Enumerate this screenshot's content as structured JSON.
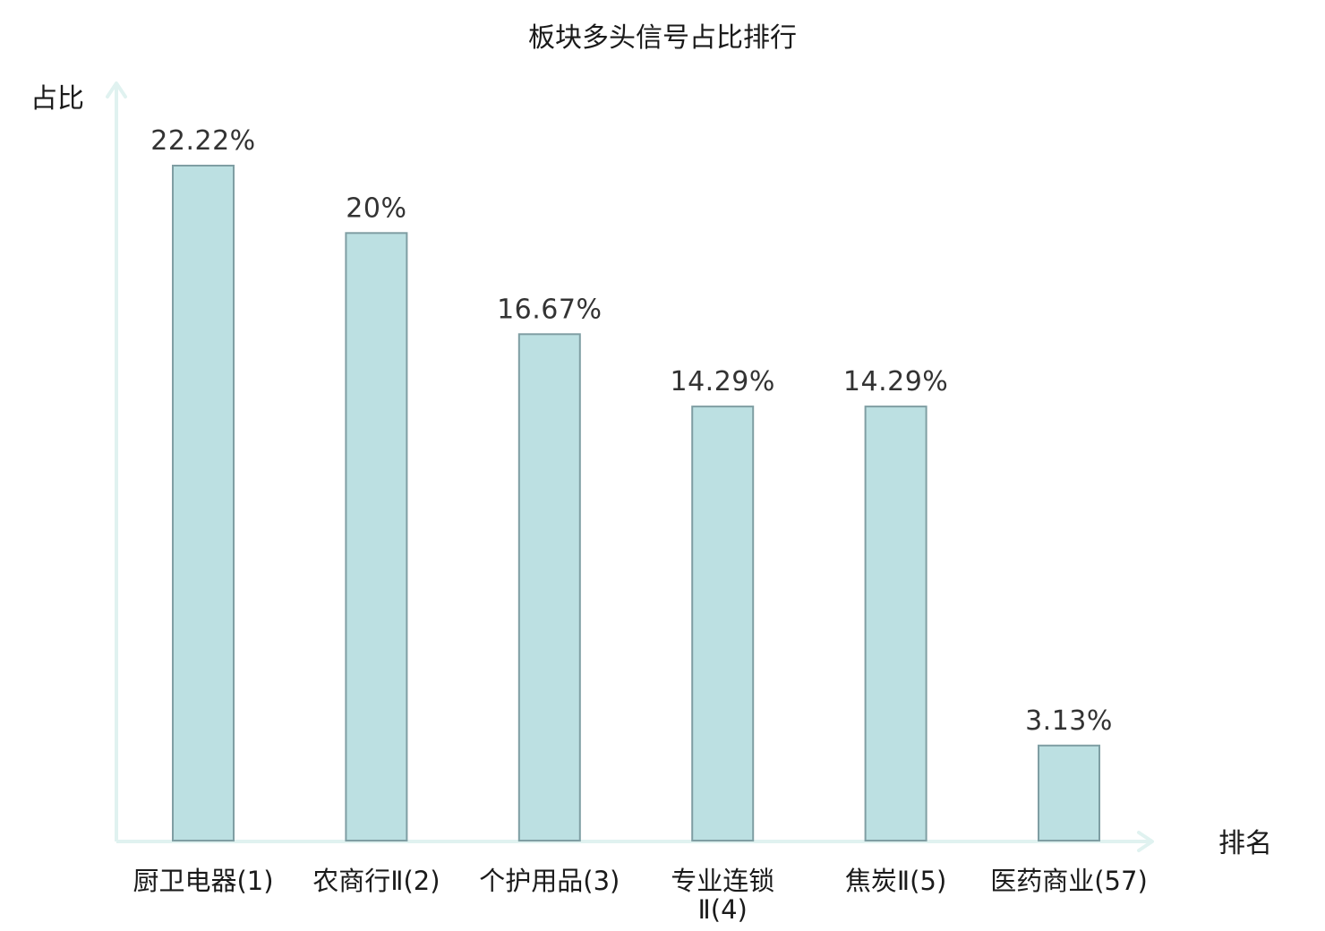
{
  "chart_data": {
    "type": "bar",
    "title": "板块多头信号占比排行",
    "ylabel": "占比",
    "xlabel": "排名",
    "categories": [
      "厨卫电器(1)",
      "农商行Ⅱ(2)",
      "个护用品(3)",
      "专业连锁Ⅱ(4)",
      "焦炭Ⅱ(5)",
      "医药商业(57)"
    ],
    "category_lines": [
      [
        "厨卫电器(1)"
      ],
      [
        "农商行Ⅱ(2)"
      ],
      [
        "个护用品(3)"
      ],
      [
        "专业连锁",
        "Ⅱ(4)"
      ],
      [
        "焦炭Ⅱ(5)"
      ],
      [
        "医药商业(57)"
      ]
    ],
    "values": [
      22.22,
      20,
      16.67,
      14.29,
      14.29,
      3.13
    ],
    "value_labels": [
      "22.22%",
      "20%",
      "16.67%",
      "14.29%",
      "14.29%",
      "3.13%"
    ],
    "highlight_index": 5,
    "ylim": [
      0,
      25
    ],
    "grid": false,
    "legend": "none",
    "colors": {
      "bar_fill": "#bce0e2",
      "bar_stroke": "#7f9ea3",
      "axis": "#e0f2f0",
      "highlight_text": "#e0201b",
      "normal_text": "#1a1a1a",
      "value_text": "#333333"
    }
  }
}
